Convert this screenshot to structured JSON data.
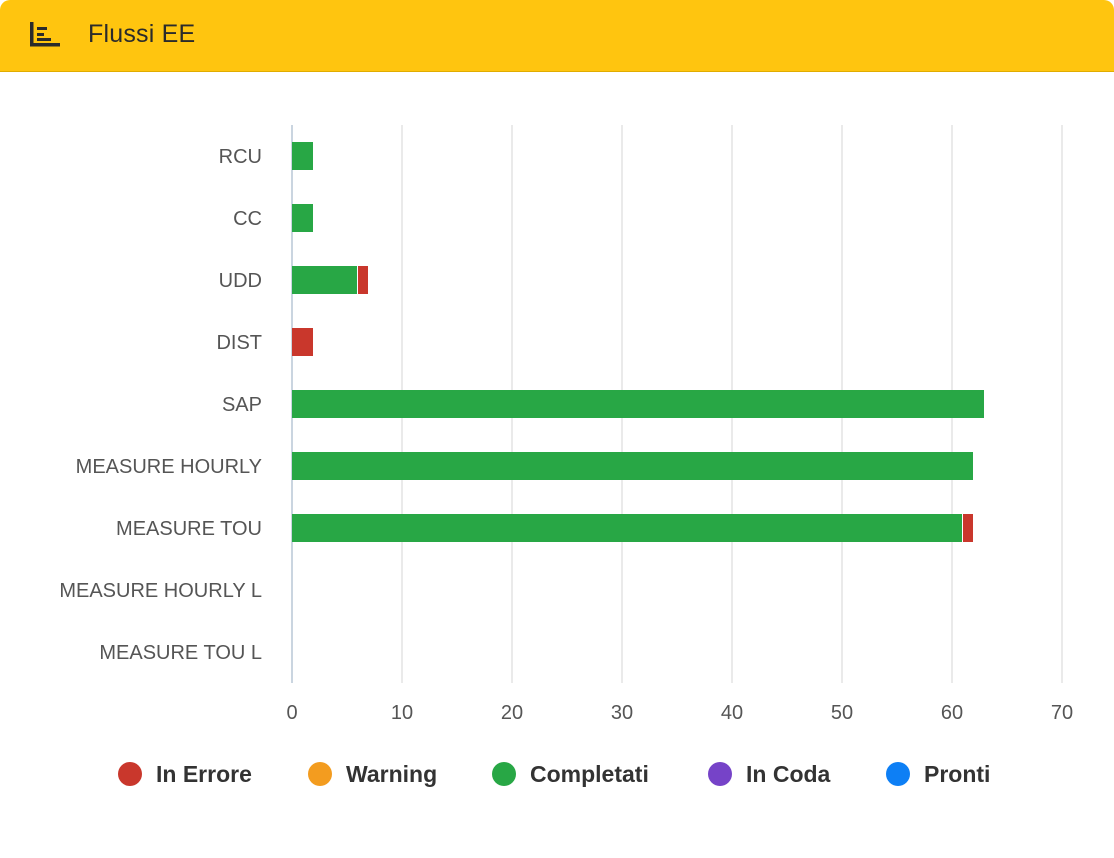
{
  "header": {
    "title": "Flussi EE",
    "icon": "bar-chart-icon"
  },
  "colors": {
    "header_bg": "#ffc50f",
    "error": "#c9372c",
    "warning": "#f39c1f",
    "completed": "#28a745",
    "queued": "#7643c8",
    "ready": "#0d7ff5"
  },
  "chart_data": {
    "type": "bar",
    "orientation": "horizontal",
    "stacked": true,
    "title": "Flussi EE",
    "categories": [
      "RCU",
      "CC",
      "UDD",
      "DIST",
      "SAP",
      "MEASURE HOURLY",
      "MEASURE TOU",
      "MEASURE HOURLY L",
      "MEASURE TOU L"
    ],
    "series": [
      {
        "name": "Completati",
        "color": "#28a745",
        "values": [
          2,
          2,
          6,
          0,
          63,
          62,
          61,
          0,
          0
        ]
      },
      {
        "name": "In Errore",
        "color": "#c9372c",
        "values": [
          0,
          0,
          1,
          2,
          0,
          0,
          1,
          0,
          0
        ]
      },
      {
        "name": "Warning",
        "color": "#f39c1f",
        "values": [
          0,
          0,
          0,
          0,
          0,
          0,
          0,
          0,
          0
        ]
      },
      {
        "name": "In Coda",
        "color": "#7643c8",
        "values": [
          0,
          0,
          0,
          0,
          0,
          0,
          0,
          0,
          0
        ]
      },
      {
        "name": "Pronti",
        "color": "#0d7ff5",
        "values": [
          0,
          0,
          0,
          0,
          0,
          0,
          0,
          0,
          0
        ]
      }
    ],
    "xlim": [
      0,
      70
    ],
    "xticks": [
      0,
      10,
      20,
      30,
      40,
      50,
      60,
      70
    ],
    "grid": true,
    "legend_position": "bottom"
  },
  "legend": {
    "items": [
      {
        "label": "In Errore",
        "color": "#c9372c"
      },
      {
        "label": "Warning",
        "color": "#f39c1f"
      },
      {
        "label": "Completati",
        "color": "#28a745"
      },
      {
        "label": "In Coda",
        "color": "#7643c8"
      },
      {
        "label": "Pronti",
        "color": "#0d7ff5"
      }
    ]
  }
}
